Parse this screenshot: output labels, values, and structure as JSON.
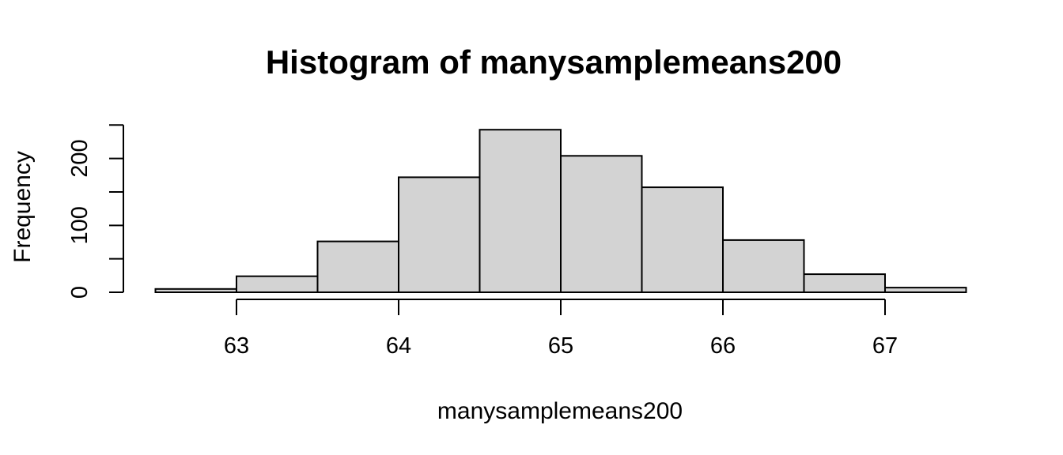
{
  "figure": {
    "title": "Histogram of manysamplemeans200",
    "xlabel": "manysamplemeans200",
    "ylabel": "Frequency"
  },
  "chart_data": {
    "type": "bar",
    "subtype": "histogram",
    "title": "Histogram of manysamplemeans200",
    "xlabel": "manysamplemeans200",
    "ylabel": "Frequency",
    "bin_edges": [
      62.5,
      63.0,
      63.5,
      64.0,
      64.5,
      65.0,
      65.5,
      66.0,
      66.5,
      67.0,
      67.5
    ],
    "counts": [
      5,
      24,
      76,
      172,
      243,
      204,
      157,
      78,
      27,
      7
    ],
    "x_ticks": [
      63,
      64,
      65,
      66,
      67
    ],
    "x_tick_labels": [
      "63",
      "64",
      "65",
      "66",
      "67"
    ],
    "y_ticks": [
      0,
      50,
      100,
      150,
      200,
      250
    ],
    "y_labeled_ticks": [
      0,
      100,
      200
    ],
    "y_tick_labels": [
      "0",
      "100",
      "200"
    ],
    "xlim": [
      62.5,
      67.5
    ],
    "ylim": [
      0,
      250
    ],
    "grid": false,
    "legend": false,
    "colors": {
      "bar_fill": "#d3d3d3",
      "bar_stroke": "#000000",
      "axis": "#000000",
      "text": "#000000",
      "background": "#ffffff"
    }
  }
}
